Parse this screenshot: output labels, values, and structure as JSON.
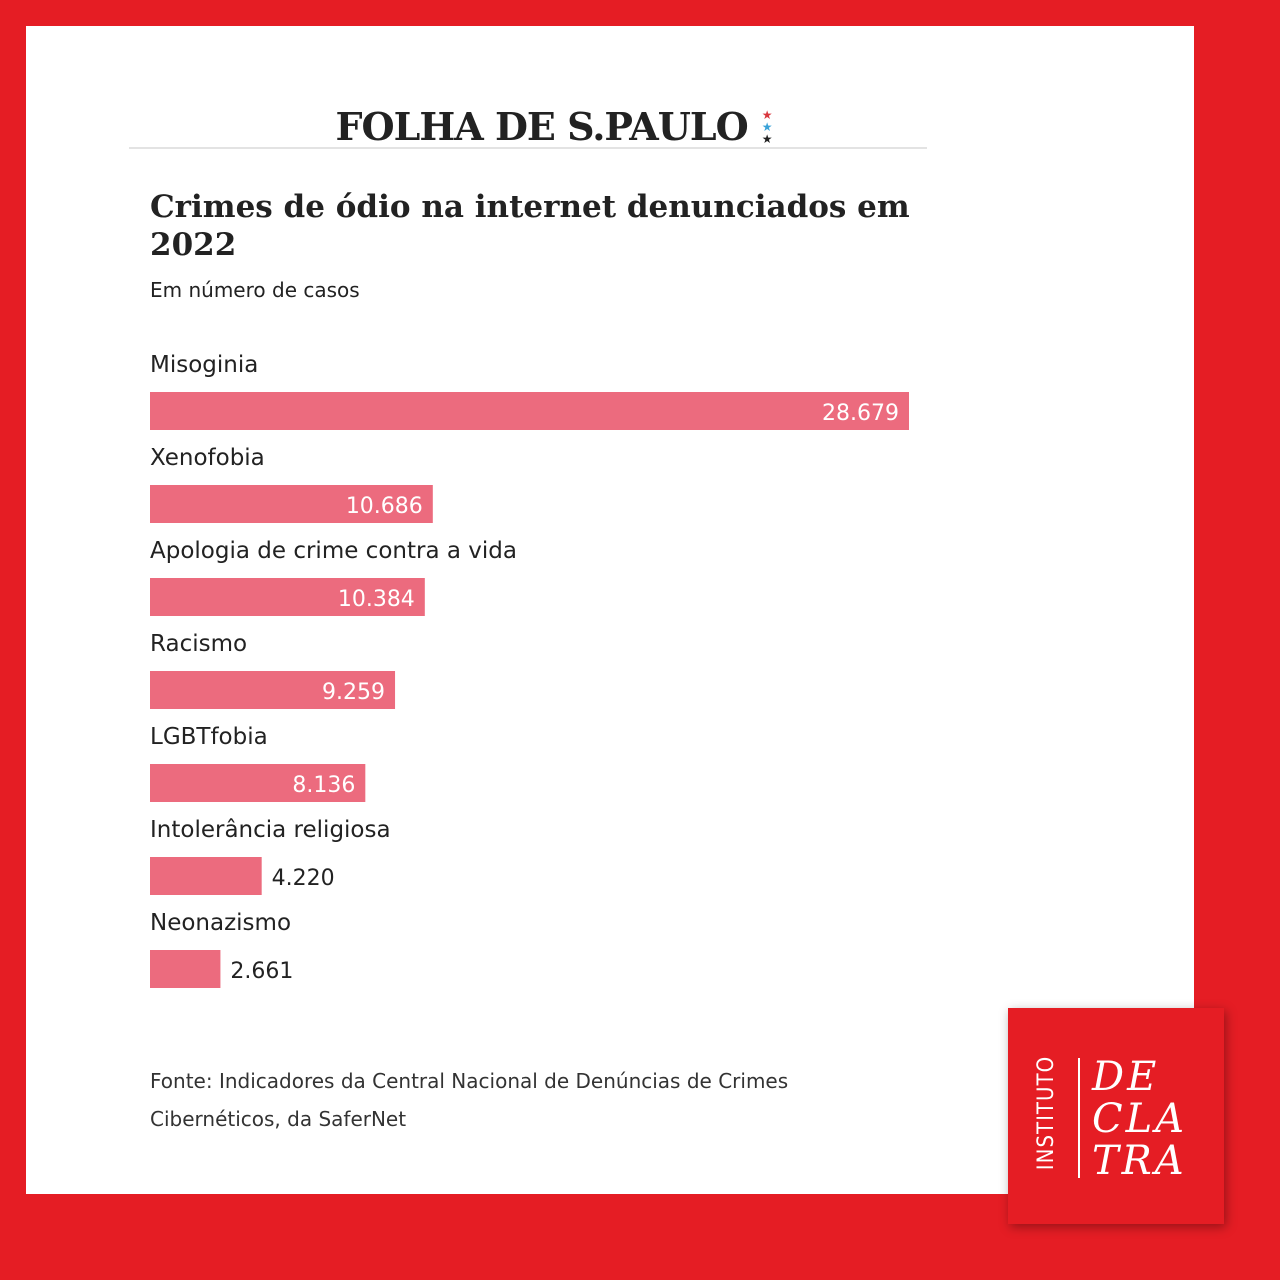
{
  "masthead": {
    "brand": "FOLHA DE S.PAULO"
  },
  "header": {
    "title": "Crimes de ódio na internet denunciados em 2022",
    "subtitle": "Em número de casos"
  },
  "chart_data": {
    "type": "bar",
    "orientation": "horizontal",
    "categories": [
      "Misoginia",
      "Xenofobia",
      "Apologia de crime contra a vida",
      "Racismo",
      "LGBTfobia",
      "Intolerância religiosa",
      "Neonazismo"
    ],
    "values": [
      28679,
      10686,
      10384,
      9259,
      8136,
      4220,
      2661
    ],
    "value_labels": [
      "28.679",
      "10.686",
      "10.384",
      "9.259",
      "8.136",
      "4.220",
      "2.661"
    ],
    "title": "Crimes de ódio na internet denunciados em 2022",
    "subtitle": "Em número de casos",
    "xlim": [
      0,
      28679
    ],
    "bar_color": "#ec6b7e",
    "grid": false,
    "legend": "none"
  },
  "source": "Fonte: Indicadores da Central Nacional de Denúncias de Crimes Cibernéticos, da SaferNet",
  "logo": {
    "vertical": "INSTITUTO",
    "words": [
      "DE",
      "CLA",
      "TRA"
    ]
  },
  "colors": {
    "background": "#e51d24",
    "bar": "#ec6b7e",
    "star_red": "#d9373e",
    "star_blue": "#3aa2d8",
    "star_dark": "#222222"
  }
}
